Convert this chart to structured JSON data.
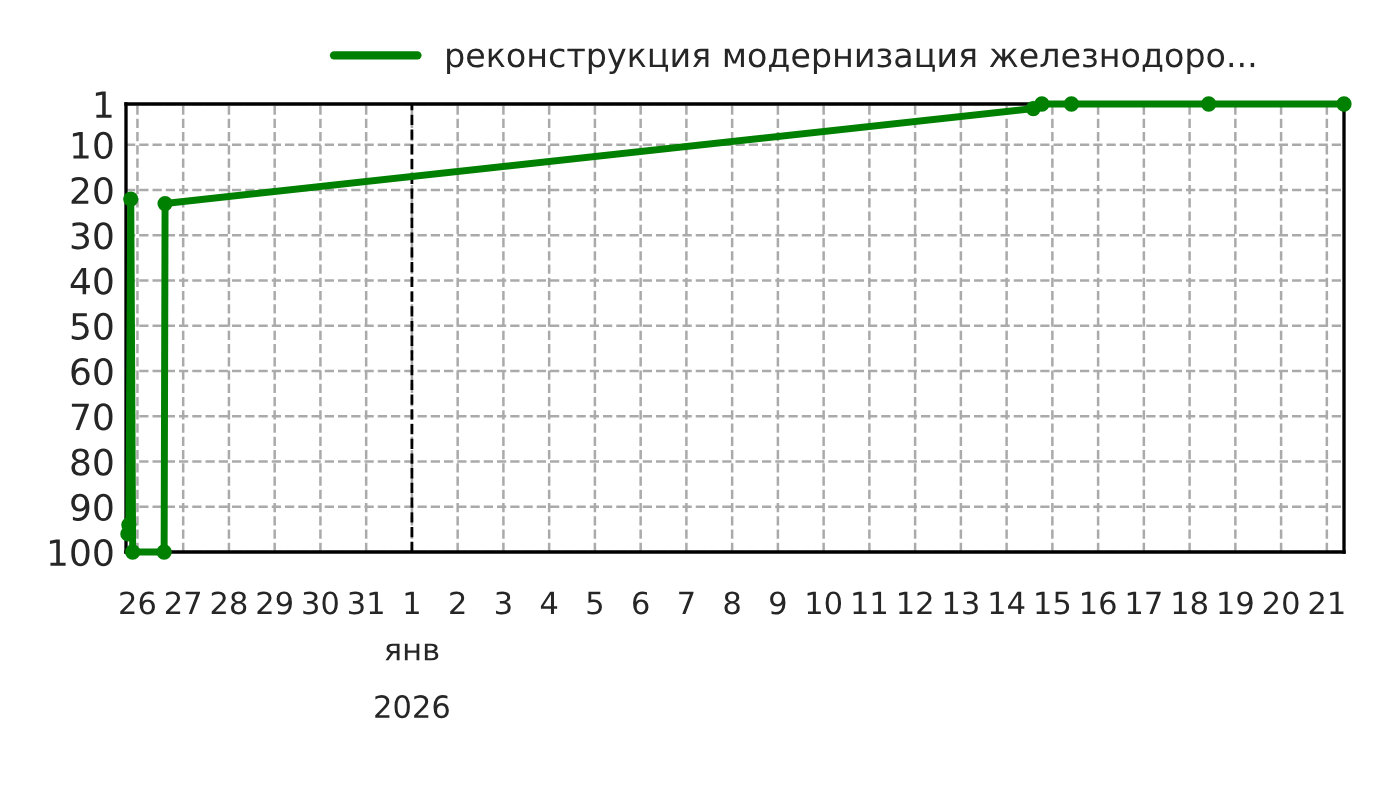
{
  "chart_data": {
    "type": "line",
    "x": [
      "2025-12-25T19:00",
      "2025-12-25T19:30",
      "2025-12-25T20:30",
      "2025-12-25T21:30",
      "2025-12-26T14:00",
      "2025-12-26T14:30",
      "2026-01-14T14:00",
      "2026-01-14T18:30",
      "2026-01-15T10:00",
      "2026-01-18T10:00",
      "2026-01-21T09:00"
    ],
    "series": [
      {
        "name": "реконструкция модернизация железнодоро...",
        "color": "#008000",
        "values": [
          96,
          94,
          22,
          100,
          100,
          23,
          2,
          1,
          1,
          1,
          1
        ]
      }
    ],
    "ylim": [
      100,
      1
    ],
    "yticks": [
      1,
      10,
      20,
      30,
      40,
      50,
      60,
      70,
      80,
      90,
      100
    ],
    "xlim": [
      "2025-12-25T18:00",
      "2026-01-21T09:00"
    ],
    "xticks": [
      {
        "value": "2025-12-26",
        "label": "26"
      },
      {
        "value": "2025-12-27",
        "label": "27"
      },
      {
        "value": "2025-12-28",
        "label": "28"
      },
      {
        "value": "2025-12-29",
        "label": "29"
      },
      {
        "value": "2025-12-30",
        "label": "30"
      },
      {
        "value": "2025-12-31",
        "label": "31"
      },
      {
        "value": "2026-01-01",
        "label": "1"
      },
      {
        "value": "2026-01-02",
        "label": "2"
      },
      {
        "value": "2026-01-03",
        "label": "3"
      },
      {
        "value": "2026-01-04",
        "label": "4"
      },
      {
        "value": "2026-01-05",
        "label": "5"
      },
      {
        "value": "2026-01-06",
        "label": "6"
      },
      {
        "value": "2026-01-07",
        "label": "7"
      },
      {
        "value": "2026-01-08",
        "label": "8"
      },
      {
        "value": "2026-01-09",
        "label": "9"
      },
      {
        "value": "2026-01-10",
        "label": "10"
      },
      {
        "value": "2026-01-11",
        "label": "11"
      },
      {
        "value": "2026-01-12",
        "label": "12"
      },
      {
        "value": "2026-01-13",
        "label": "13"
      },
      {
        "value": "2026-01-14",
        "label": "14"
      },
      {
        "value": "2026-01-15",
        "label": "15"
      },
      {
        "value": "2026-01-16",
        "label": "16"
      },
      {
        "value": "2026-01-17",
        "label": "17"
      },
      {
        "value": "2026-01-18",
        "label": "18"
      },
      {
        "value": "2026-01-19",
        "label": "19"
      },
      {
        "value": "2026-01-20",
        "label": "20"
      },
      {
        "value": "2026-01-21",
        "label": "21"
      }
    ],
    "ref_lines": [
      {
        "axis": "x",
        "value": "2026-01-01",
        "color": "#000000",
        "line_style": "dashed"
      }
    ],
    "xlabel": "янв\n2026",
    "grid": true,
    "legend": "top",
    "marker": "circle",
    "line_style": "solid"
  }
}
